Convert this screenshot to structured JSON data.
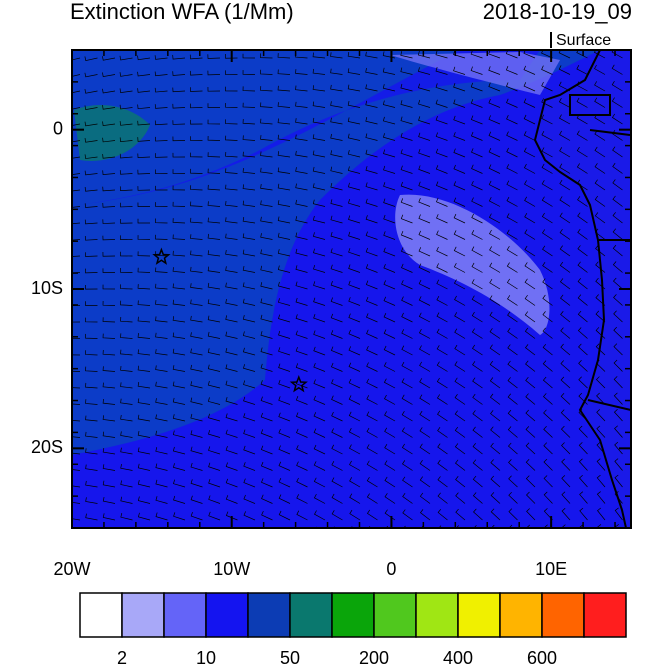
{
  "title": "Extinction WFA (1/Mm)",
  "valid_time": "2018-10-19_09",
  "level": "Surface",
  "map": {
    "xlim": [
      -20,
      15
    ],
    "ylim": [
      -25,
      5
    ],
    "xticks": [
      {
        "value": -20,
        "label": "20W"
      },
      {
        "value": -10,
        "label": "10W"
      },
      0,
      {
        "value": 10,
        "label": "10E"
      }
    ],
    "yticks": [
      0,
      {
        "value": -10,
        "label": "10S"
      },
      {
        "value": -20,
        "label": "20S"
      }
    ],
    "markers": [
      {
        "lon": -14.4,
        "lat": -8
      },
      {
        "lon": -5.8,
        "lat": -16
      }
    ]
  },
  "colorbar": {
    "colors": [
      "#ffffff",
      "#a8a8f8",
      "#6464f8",
      "#1414f0",
      "#0c3cb4",
      "#0a786e",
      "#0aa50a",
      "#50c81e",
      "#a0e614",
      "#f0f000",
      "#ffb400",
      "#ff6400",
      "#ff1e1e"
    ],
    "labels": [
      "2",
      "10",
      "50",
      "200",
      "400",
      "600"
    ]
  }
}
